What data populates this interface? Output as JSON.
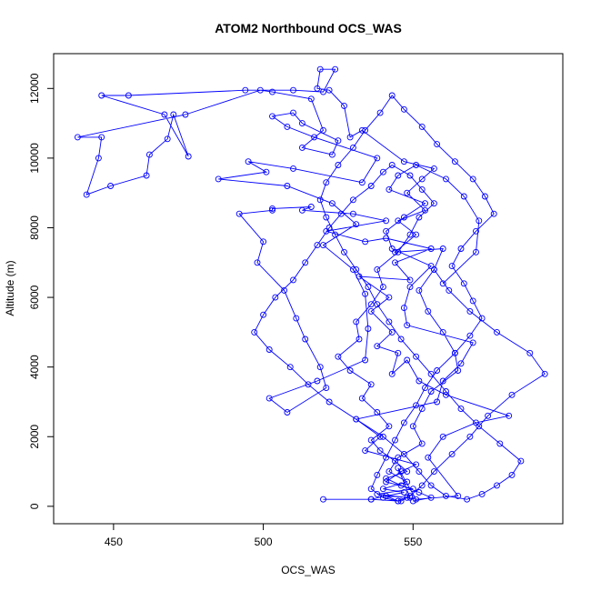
{
  "chart_data": {
    "type": "scatter",
    "title": "ATOM2 Northbound OCS_WAS",
    "xlabel": "OCS_WAS",
    "ylabel": "Altitude (m)",
    "xlim": [
      430,
      600
    ],
    "ylim": [
      -500,
      13000
    ],
    "xticks": [
      450,
      500,
      550
    ],
    "yticks": [
      0,
      2000,
      4000,
      6000,
      8000,
      10000,
      12000
    ],
    "grid": false,
    "style": {
      "point": "open-circle",
      "connected": true,
      "color": "#0000ff"
    },
    "series": [
      {
        "x": [
          520,
          536,
          545,
          541,
          549,
          545,
          551,
          565,
          555,
          560,
          571,
          582,
          561,
          552,
          548,
          543,
          545,
          538,
          543,
          536,
          542,
          532,
          549,
          544,
          556,
          541,
          534,
          521,
          541,
          530,
          513,
          516,
          503,
          503,
          492,
          500,
          498,
          507,
          511,
          514,
          519,
          521,
          508,
          502,
          518,
          534,
          535,
          534,
          530,
          520,
          531,
          523,
          508,
          485,
          501,
          495,
          510,
          533,
          538,
          517,
          508,
          503,
          510,
          513,
          525,
          523,
          513,
          520,
          516,
          503,
          499,
          474,
          438,
          446,
          445,
          441,
          449,
          461,
          462,
          468,
          470,
          475,
          467,
          446,
          455,
          494,
          510,
          520,
          524,
          519,
          518,
          522,
          527,
          529,
          533,
          547,
          557,
          553,
          548,
          554,
          545,
          551,
          544,
          560,
          557,
          552,
          555,
          560,
          564,
          565,
          556,
          553,
          550,
          553,
          545,
          542,
          548,
          540,
          547,
          541,
          536,
          546,
          548,
          538,
          550,
          541,
          546,
          551,
          534,
          539,
          531,
          558,
          560,
          566,
          570,
          548,
          547,
          549,
          556,
          543,
          541,
          547,
          554,
          542,
          545,
          551,
          561,
          567,
          572,
          571,
          560
        ],
        "y": [
          200,
          200,
          150,
          300,
          250,
          1100,
          200,
          300,
          1400,
          2000,
          2400,
          2600,
          3200,
          3600,
          4200,
          3800,
          4400,
          4600,
          5000,
          5600,
          6000,
          6600,
          6500,
          7000,
          7400,
          7700,
          7600,
          7900,
          8200,
          8400,
          8500,
          8600,
          8550,
          8500,
          8400,
          7600,
          7000,
          6200,
          5400,
          4800,
          4000,
          3400,
          2700,
          3100,
          3600,
          4200,
          5100,
          6100,
          6800,
          7500,
          8100,
          8700,
          9200,
          9400,
          9600,
          9900,
          9700,
          9300,
          10000,
          10600,
          10900,
          11200,
          11300,
          11000,
          10500,
          10100,
          10300,
          10800,
          11700,
          11900,
          11950,
          11250,
          10600,
          10600,
          10000,
          8950,
          9200,
          9500,
          10100,
          10550,
          11250,
          10050,
          11250,
          11800,
          11800,
          11950,
          11950,
          11900,
          12550,
          12550,
          12000,
          11950,
          11500,
          10600,
          10800,
          9900,
          9700,
          9400,
          9000,
          8500,
          8200,
          7800,
          7300,
          7400,
          6800,
          6200,
          5600,
          5000,
          4400,
          3900,
          3300,
          2800,
          2300,
          1800,
          1400,
          1000,
          700,
          500,
          400,
          300,
          200,
          150,
          250,
          350,
          500,
          700,
          1000,
          1200,
          1600,
          2000,
          2500,
          3000,
          3600,
          4100,
          4700,
          5200,
          5700,
          6300,
          6900,
          7400,
          7900,
          8300,
          8700,
          9100,
          9500,
          9800,
          9400,
          8900,
          8200,
          7300,
          6400
        ]
      },
      {
        "x": [
          550,
          556,
          552,
          546,
          541,
          548,
          544,
          539,
          536,
          542,
          538,
          533,
          536,
          529,
          525,
          532,
          531,
          536,
          540,
          538,
          545,
          549,
          552,
          557,
          553,
          549,
          543,
          540,
          536,
          530,
          526,
          522,
          518,
          514,
          510,
          504,
          500,
          497,
          502,
          509,
          515,
          522,
          531,
          540,
          547,
          552,
          556,
          561,
          568,
          573,
          578,
          583,
          586,
          579,
          572,
          566,
          561,
          556,
          551,
          546,
          542,
          538,
          535,
          531,
          527,
          524,
          521,
          519,
          521,
          525,
          530,
          534,
          539,
          543,
          547,
          553,
          558,
          564,
          570,
          574,
          577,
          571,
          566,
          563,
          567,
          570,
          573,
          569,
          564,
          558,
          554,
          551,
          547,
          544,
          541,
          538,
          536,
          540,
          545,
          549,
          553,
          557,
          563,
          569,
          575,
          583,
          594,
          589,
          578,
          569,
          562,
          557
        ],
        "y": [
          150,
          250,
          400,
          600,
          800,
          1000,
          1300,
          1600,
          1900,
          2300,
          2700,
          3100,
          3500,
          3900,
          4300,
          4800,
          5300,
          5800,
          6300,
          6800,
          7300,
          7800,
          8300,
          8700,
          9100,
          9500,
          9800,
          9600,
          9200,
          8800,
          8400,
          8000,
          7500,
          7000,
          6500,
          6000,
          5500,
          5000,
          4500,
          4000,
          3500,
          3000,
          2500,
          2000,
          1500,
          1000,
          600,
          300,
          200,
          350,
          600,
          900,
          1300,
          1800,
          2300,
          2800,
          3300,
          3800,
          4300,
          4800,
          5300,
          5800,
          6300,
          6800,
          7300,
          7800,
          8300,
          8800,
          9300,
          9800,
          10300,
          10800,
          11300,
          11800,
          11400,
          10900,
          10400,
          9900,
          9400,
          8900,
          8400,
          7900,
          7400,
          6900,
          6400,
          5900,
          5400,
          4900,
          4400,
          3900,
          3400,
          2900,
          2400,
          1900,
          1400,
          900,
          500,
          250,
          150,
          300,
          600,
          1000,
          1500,
          2000,
          2600,
          3200,
          3800,
          4400,
          5000,
          5600,
          6200,
          6800
        ]
      }
    ]
  }
}
